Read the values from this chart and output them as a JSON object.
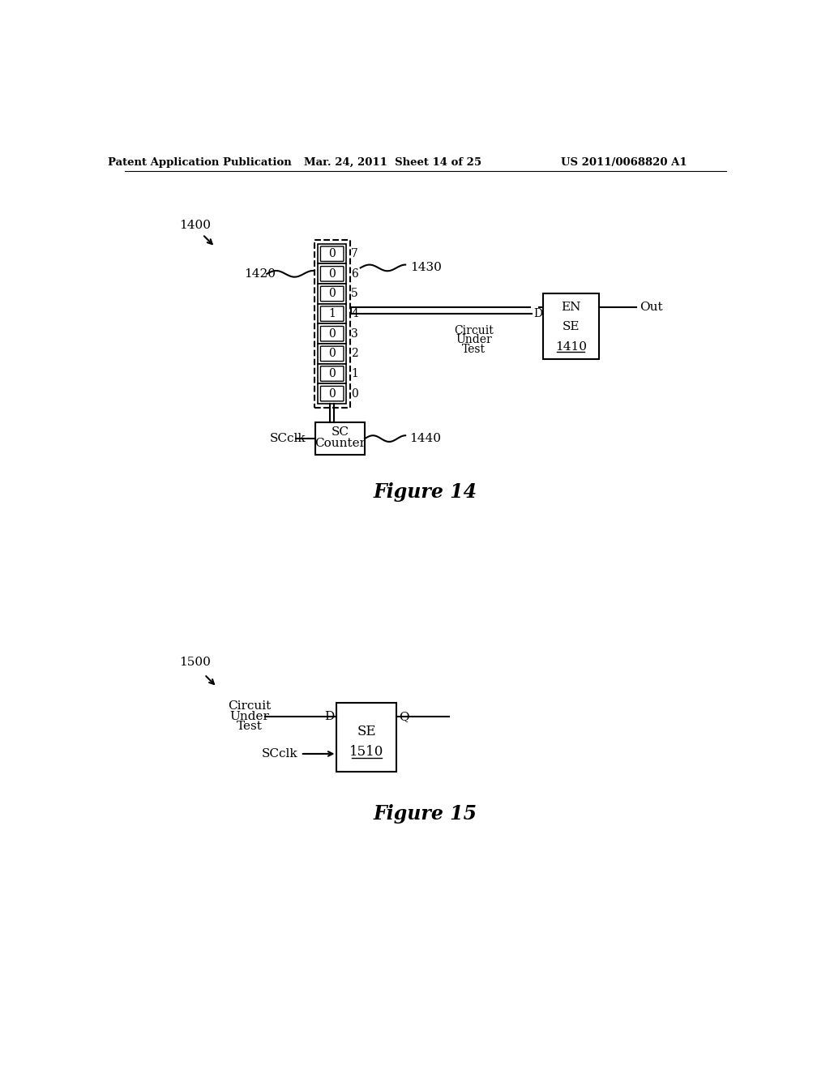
{
  "header_left": "Patent Application Publication",
  "header_mid": "Mar. 24, 2011  Sheet 14 of 25",
  "header_right": "US 2011/0068820 A1",
  "fig14_label": "1400",
  "fig14_caption": "Figure 14",
  "fig14_1420_label": "1420",
  "fig14_1430_label": "1430",
  "fig14_1440_label": "1440",
  "fig14_scclk_label": "SCclk",
  "fig14_sc_counter": [
    "SC",
    "Counter"
  ],
  "fig14_bit_values": [
    "0",
    "0",
    "0",
    "1",
    "0",
    "0",
    "0",
    "0"
  ],
  "fig14_bit_numbers": [
    "7",
    "6",
    "5",
    "4",
    "3",
    "2",
    "1",
    "0"
  ],
  "fig14_cut_label": [
    "Circuit",
    "Under",
    "Test"
  ],
  "fig14_cut_d": "D",
  "fig14_box_labels": [
    "EN",
    "SE",
    "1410"
  ],
  "fig14_out_label": "Out",
  "fig15_label": "1500",
  "fig15_caption": "Figure 15",
  "fig15_cut_label": [
    "Circuit",
    "Under",
    "Test"
  ],
  "fig15_d_label": "D",
  "fig15_q_label": "Q",
  "fig15_scclk_label": "SCclk",
  "fig15_box_labels": [
    "SE",
    "1510"
  ],
  "background_color": "#ffffff",
  "line_color": "#000000",
  "text_color": "#000000"
}
